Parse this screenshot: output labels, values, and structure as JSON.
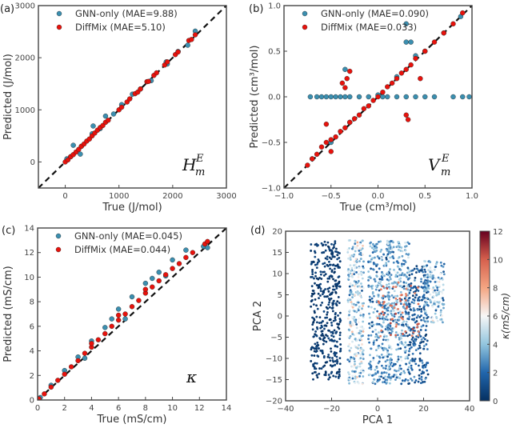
{
  "colors": {
    "gnn": "#3b8fb0",
    "diffmix": "#e8120c",
    "edge": "#222222",
    "diag": "#111111"
  },
  "chart_data": [
    {
      "type": "scatter",
      "panel_label": "(a)",
      "xlabel": "True (J/mol)",
      "ylabel": "Predicted (J/mol)",
      "xlim": [
        -500,
        3000
      ],
      "ylim": [
        -500,
        3000
      ],
      "xticks": [
        "0",
        "1000",
        "2000",
        "3000"
      ],
      "xtick_values": [
        0,
        1000,
        2000,
        3000
      ],
      "yticks": [
        "0",
        "1000",
        "2000",
        "3000"
      ],
      "ytick_values": [
        0,
        1000,
        2000,
        3000
      ],
      "annotation": {
        "main": "H",
        "sup": "E",
        "sub": "m"
      },
      "legend_position": "top-left",
      "series": [
        {
          "name": "GNN-only (MAE=9.88)",
          "points": [
            [
              30,
              60
            ],
            [
              150,
              320
            ],
            [
              280,
              150
            ],
            [
              520,
              690
            ],
            [
              500,
              540
            ],
            [
              750,
              880
            ],
            [
              900,
              920
            ],
            [
              1050,
              1100
            ],
            [
              1250,
              1300
            ],
            [
              1400,
              1400
            ],
            [
              1880,
              1920
            ],
            [
              1900,
              1880
            ],
            [
              2280,
              2240
            ],
            [
              2420,
              2510
            ],
            [
              100,
              100
            ],
            [
              300,
              300
            ],
            [
              650,
              640
            ],
            [
              1600,
              1560
            ],
            [
              2100,
              2120
            ]
          ]
        },
        {
          "name": "DiffMix (MAE=5.10)",
          "points": [
            [
              0,
              0
            ],
            [
              50,
              40
            ],
            [
              100,
              100
            ],
            [
              150,
              140
            ],
            [
              200,
              190
            ],
            [
              250,
              240
            ],
            [
              300,
              300
            ],
            [
              350,
              345
            ],
            [
              400,
              400
            ],
            [
              450,
              440
            ],
            [
              500,
              500
            ],
            [
              550,
              555
            ],
            [
              600,
              610
            ],
            [
              650,
              660
            ],
            [
              700,
              700
            ],
            [
              750,
              760
            ],
            [
              800,
              800
            ],
            [
              1000,
              1000
            ],
            [
              1050,
              1050
            ],
            [
              1150,
              1150
            ],
            [
              1200,
              1210
            ],
            [
              1300,
              1310
            ],
            [
              1350,
              1340
            ],
            [
              1400,
              1400
            ],
            [
              1520,
              1540
            ],
            [
              1550,
              1545
            ],
            [
              1650,
              1660
            ],
            [
              1700,
              1710
            ],
            [
              1850,
              1860
            ],
            [
              1900,
              1920
            ],
            [
              2050,
              2060
            ],
            [
              2100,
              2110
            ],
            [
              2300,
              2330
            ],
            [
              2350,
              2350
            ],
            [
              2420,
              2440
            ]
          ]
        }
      ]
    },
    {
      "type": "scatter",
      "panel_label": "(b)",
      "xlabel": "True (cm³/mol)",
      "ylabel": "Predicted (cm³/mol)",
      "xlim": [
        -1,
        1
      ],
      "ylim": [
        -1,
        1
      ],
      "xticks": [
        "−1.0",
        "−0.5",
        "0.0",
        "0.5",
        "1.0"
      ],
      "xtick_values": [
        -1,
        -0.5,
        0,
        0.5,
        1
      ],
      "yticks": [
        "−1.0",
        "−0.5",
        "0.0",
        "0.5",
        "1.0"
      ],
      "ytick_values": [
        -1,
        -0.5,
        0,
        0.5,
        1
      ],
      "annotation": {
        "main": "V",
        "sup": "E",
        "sub": "m"
      },
      "legend_position": "top-left",
      "series": [
        {
          "name": "GNN-only (MAE=0.090)",
          "points": [
            [
              -0.72,
              0
            ],
            [
              -0.65,
              0
            ],
            [
              -0.6,
              0
            ],
            [
              -0.55,
              0
            ],
            [
              -0.5,
              0
            ],
            [
              -0.45,
              0
            ],
            [
              -0.4,
              0
            ],
            [
              -0.35,
              0
            ],
            [
              -0.3,
              0
            ],
            [
              -0.2,
              0
            ],
            [
              -0.1,
              0
            ],
            [
              0.05,
              0
            ],
            [
              0.1,
              0
            ],
            [
              0.2,
              0
            ],
            [
              0.3,
              0
            ],
            [
              0.4,
              0
            ],
            [
              0.5,
              0
            ],
            [
              0.6,
              0
            ],
            [
              0.8,
              0
            ],
            [
              0.9,
              0
            ],
            [
              0.97,
              0
            ],
            [
              -0.7,
              -0.68
            ],
            [
              -0.5,
              -0.5
            ],
            [
              -0.3,
              -0.28
            ],
            [
              0.0,
              0.02
            ],
            [
              0.2,
              0.22
            ],
            [
              0.3,
              0.8
            ],
            [
              0.35,
              0.6
            ],
            [
              0.4,
              0.45
            ],
            [
              0.5,
              0.5
            ],
            [
              0.7,
              0.7
            ],
            [
              0.88,
              0.88
            ],
            [
              0.3,
              0.6
            ],
            [
              -0.35,
              0.3
            ]
          ]
        },
        {
          "name": "DiffMix (MAE=0.033)",
          "points": [
            [
              -0.75,
              -0.75
            ],
            [
              -0.7,
              -0.68
            ],
            [
              -0.65,
              -0.63
            ],
            [
              -0.6,
              -0.55
            ],
            [
              -0.55,
              -0.5
            ],
            [
              -0.5,
              -0.47
            ],
            [
              -0.45,
              -0.44
            ],
            [
              -0.4,
              -0.38
            ],
            [
              -0.35,
              -0.34
            ],
            [
              -0.3,
              -0.28
            ],
            [
              -0.25,
              -0.24
            ],
            [
              -0.2,
              -0.2
            ],
            [
              -0.15,
              -0.13
            ],
            [
              -0.1,
              -0.1
            ],
            [
              -0.05,
              -0.04
            ],
            [
              0.0,
              0.0
            ],
            [
              0.05,
              0.05
            ],
            [
              0.1,
              0.11
            ],
            [
              0.15,
              0.15
            ],
            [
              0.2,
              0.2
            ],
            [
              0.25,
              0.26
            ],
            [
              0.3,
              0.3
            ],
            [
              0.35,
              0.35
            ],
            [
              0.4,
              0.42
            ],
            [
              0.5,
              0.5
            ],
            [
              0.6,
              0.6
            ],
            [
              0.7,
              0.7
            ],
            [
              0.8,
              0.8
            ],
            [
              0.9,
              0.92
            ],
            [
              -0.35,
              0.1
            ],
            [
              -0.33,
              0.2
            ],
            [
              -0.3,
              0.28
            ],
            [
              -0.38,
              0.15
            ],
            [
              0.3,
              -0.2
            ],
            [
              0.32,
              -0.25
            ],
            [
              -0.55,
              -0.3
            ],
            [
              -0.5,
              -0.6
            ],
            [
              0.45,
              0.2
            ]
          ]
        }
      ]
    },
    {
      "type": "scatter",
      "panel_label": "(c)",
      "xlabel": "True (mS/cm)",
      "ylabel": "Predicted (mS/cm)",
      "xlim": [
        0,
        14
      ],
      "ylim": [
        0,
        14
      ],
      "xticks": [
        "0",
        "2",
        "4",
        "6",
        "8",
        "10",
        "12",
        "14"
      ],
      "xtick_values": [
        0,
        2,
        4,
        6,
        8,
        10,
        12,
        14
      ],
      "yticks": [
        "0",
        "2",
        "4",
        "6",
        "8",
        "10",
        "12",
        "14"
      ],
      "ytick_values": [
        0,
        2,
        4,
        6,
        8,
        10,
        12,
        14
      ],
      "annotation": {
        "main": "κ",
        "sup": "",
        "sub": ""
      },
      "legend_position": "top-left",
      "series": [
        {
          "name": "GNN-only (MAE=0.045)",
          "points": [
            [
              0.2,
              0.2
            ],
            [
              1,
              1.2
            ],
            [
              2,
              2.4
            ],
            [
              3,
              3.5
            ],
            [
              4,
              4.8
            ],
            [
              5,
              5.9
            ],
            [
              5.5,
              6.6
            ],
            [
              6,
              7.4
            ],
            [
              7,
              8.4
            ],
            [
              8,
              9.5
            ],
            [
              8.5,
              9.9
            ],
            [
              9,
              10.4
            ],
            [
              10,
              11.4
            ],
            [
              11,
              12.2
            ],
            [
              12.3,
              12.5
            ],
            [
              12.6,
              12.4
            ],
            [
              3.5,
              3.4
            ],
            [
              6.5,
              6.6
            ],
            [
              9.5,
              10.1
            ]
          ]
        },
        {
          "name": "DiffMix (MAE=0.044)",
          "points": [
            [
              0.1,
              0.1
            ],
            [
              0.5,
              0.5
            ],
            [
              1,
              1.05
            ],
            [
              1.5,
              1.6
            ],
            [
              2,
              2.1
            ],
            [
              2.5,
              2.7
            ],
            [
              3,
              3.2
            ],
            [
              3.5,
              3.8
            ],
            [
              4,
              4.3
            ],
            [
              4.5,
              4.9
            ],
            [
              5,
              5.4
            ],
            [
              5.5,
              6
            ],
            [
              6,
              6.5
            ],
            [
              6.5,
              7
            ],
            [
              7,
              7.6
            ],
            [
              7.5,
              8.1
            ],
            [
              8,
              8.7
            ],
            [
              8.5,
              9.2
            ],
            [
              9,
              9.7
            ],
            [
              9.5,
              10.2
            ],
            [
              10,
              10.7
            ],
            [
              10.5,
              11.1
            ],
            [
              11,
              11.6
            ],
            [
              11.5,
              12
            ],
            [
              12.4,
              12.7
            ],
            [
              12.6,
              12.9
            ],
            [
              4,
              4.6
            ],
            [
              6,
              6.9
            ],
            [
              8,
              9
            ]
          ]
        }
      ]
    },
    {
      "type": "scatter",
      "panel_label": "(d)",
      "xlabel": "PCA 1",
      "ylabel": "PCA 2",
      "xlim": [
        -40,
        40
      ],
      "ylim": [
        -20,
        20
      ],
      "xticks": [
        "−40",
        "−20",
        "0",
        "20",
        "40"
      ],
      "xtick_values": [
        -40,
        -20,
        0,
        20,
        40
      ],
      "yticks": [
        "−20",
        "−15",
        "−10",
        "−5",
        "0",
        "5",
        "10",
        "15",
        "20"
      ],
      "ytick_values": [
        -20,
        -15,
        -10,
        -5,
        0,
        5,
        10,
        15,
        20
      ],
      "colorbar": {
        "label": "κ(mS/cm)",
        "range": [
          0,
          12
        ],
        "ticks": [
          "0",
          "2",
          "4",
          "6",
          "8",
          "10",
          "12"
        ],
        "tick_values": [
          0,
          2,
          4,
          6,
          8,
          10,
          12
        ],
        "colormap": [
          "#053061",
          "#2166ac",
          "#92c5de",
          "#f7f7f7",
          "#f4a582",
          "#d6604d",
          "#67001f"
        ]
      },
      "clusters": [
        {
          "x": [
            -29,
            -16
          ],
          "y": [
            -15,
            18
          ],
          "kappa_mean": 0.4,
          "kappa_spread": 0.6,
          "n": 420
        },
        {
          "x": [
            -13,
            -6
          ],
          "y": [
            -16,
            18
          ],
          "kappa_mean": 4.5,
          "kappa_spread": 3.5,
          "n": 300
        },
        {
          "x": [
            -4,
            6
          ],
          "y": [
            -16,
            18
          ],
          "kappa_mean": 3,
          "kappa_spread": 2.5,
          "n": 320
        },
        {
          "x": [
            4,
            14
          ],
          "y": [
            -16,
            18
          ],
          "kappa_mean": 3.2,
          "kappa_spread": 3,
          "n": 320
        },
        {
          "x": [
            13,
            22
          ],
          "y": [
            -16,
            12
          ],
          "kappa_mean": 1.8,
          "kappa_spread": 1.8,
          "n": 240
        },
        {
          "x": [
            20,
            29
          ],
          "y": [
            -2,
            13
          ],
          "kappa_mean": 4,
          "kappa_spread": 3,
          "n": 160
        },
        {
          "x": [
            0,
            18
          ],
          "y": [
            -5,
            8
          ],
          "kappa_mean": 9.5,
          "kappa_spread": 1.5,
          "n": 60
        }
      ]
    }
  ]
}
